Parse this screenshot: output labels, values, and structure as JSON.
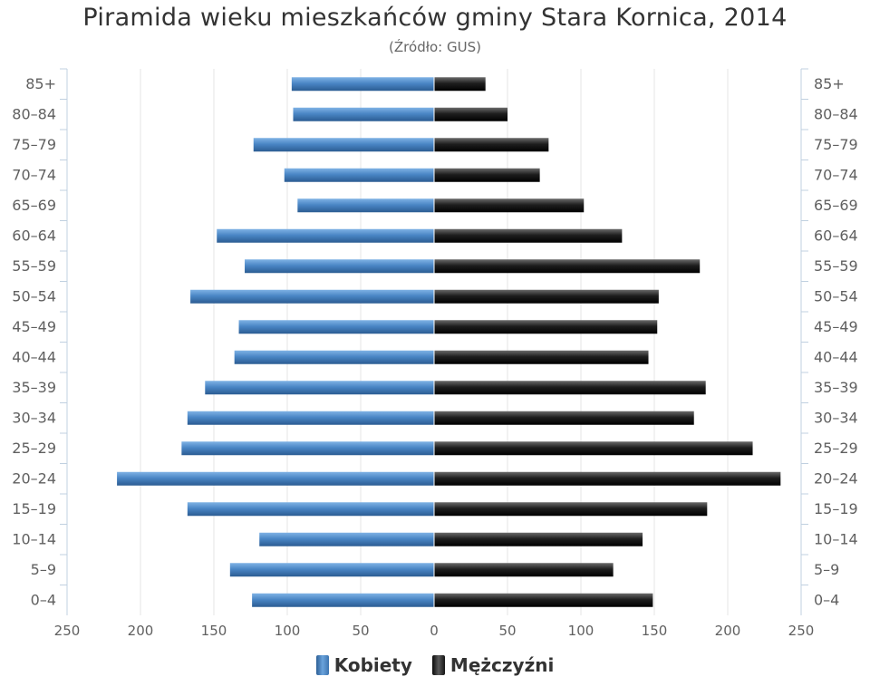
{
  "chart_data": {
    "type": "bar",
    "title": "Piramida wieku mieszkańców gminy Stara Kornica, 2014",
    "subtitle": "(Źródło: GUS)",
    "categories": [
      "85+",
      "80–84",
      "75–79",
      "70–74",
      "65–69",
      "60–64",
      "55–59",
      "50–54",
      "45–49",
      "40–44",
      "35–39",
      "30–34",
      "25–29",
      "20–24",
      "15–19",
      "10–14",
      "5–9",
      "0–4"
    ],
    "series": [
      {
        "name": "Kobiety",
        "values": [
          97,
          96,
          123,
          102,
          93,
          148,
          129,
          166,
          133,
          136,
          156,
          168,
          172,
          216,
          168,
          119,
          139,
          124
        ]
      },
      {
        "name": "Mężczyźni",
        "values": [
          35,
          50,
          78,
          72,
          102,
          128,
          181,
          153,
          152,
          146,
          185,
          177,
          217,
          236,
          186,
          142,
          122,
          149
        ]
      }
    ],
    "xaxis_ticks": [
      "250",
      "200",
      "150",
      "100",
      "50",
      "0",
      "50",
      "100",
      "150",
      "200",
      "250"
    ],
    "xlim": [
      -250,
      250
    ],
    "orientation": "horizontal",
    "grid": true,
    "legend_position": "bottom",
    "colors": {
      "Kobiety": "#4a86c5",
      "Mężczyźni": "#1a1a1a"
    }
  },
  "legend": {
    "women_label": "Kobiety",
    "men_label": "Mężczyźni"
  }
}
